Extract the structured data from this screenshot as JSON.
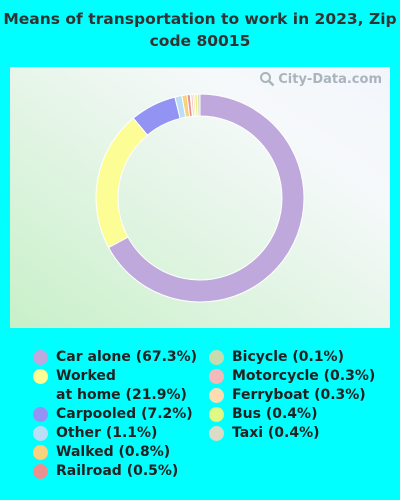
{
  "title": "Means of transportation to work in 2023, Zip code 80015",
  "watermark": "City-Data.com",
  "chart_data": {
    "type": "pie",
    "donut": true,
    "title": "Means of transportation to work in 2023, Zip code 80015",
    "slices": [
      {
        "label": "Car alone (67.3%)",
        "value": 67.3,
        "color": "#bfa8dc"
      },
      {
        "label": "Worked at home (21.9%)",
        "value": 21.9,
        "color": "#fdfd96"
      },
      {
        "label": "Carpooled (7.2%)",
        "value": 7.2,
        "color": "#9393f3"
      },
      {
        "label": "Other (1.1%)",
        "value": 1.1,
        "color": "#b9def5"
      },
      {
        "label": "Walked (0.8%)",
        "value": 0.8,
        "color": "#fad17d"
      },
      {
        "label": "Railroad (0.5%)",
        "value": 0.5,
        "color": "#eb9090"
      },
      {
        "label": "Bicycle (0.1%)",
        "value": 0.1,
        "color": "#c6dcae"
      },
      {
        "label": "Motorcycle (0.3%)",
        "value": 0.3,
        "color": "#f6b9b9"
      },
      {
        "label": "Ferryboat (0.3%)",
        "value": 0.3,
        "color": "#fcdcb0"
      },
      {
        "label": "Bus (0.4%)",
        "value": 0.4,
        "color": "#e0f884"
      },
      {
        "label": "Taxi (0.4%)",
        "value": 0.4,
        "color": "#dcdcc6"
      }
    ],
    "legend_columns": [
      [
        "Car alone (67.3%)",
        "Worked\nat home (21.9%)",
        "Carpooled (7.2%)",
        "Other (1.1%)",
        "Walked (0.8%)",
        "Railroad (0.5%)"
      ],
      [
        "Bicycle (0.1%)",
        "Motorcycle (0.3%)",
        "Ferryboat (0.3%)",
        "Bus (0.4%)",
        "Taxi (0.4%)"
      ]
    ]
  }
}
